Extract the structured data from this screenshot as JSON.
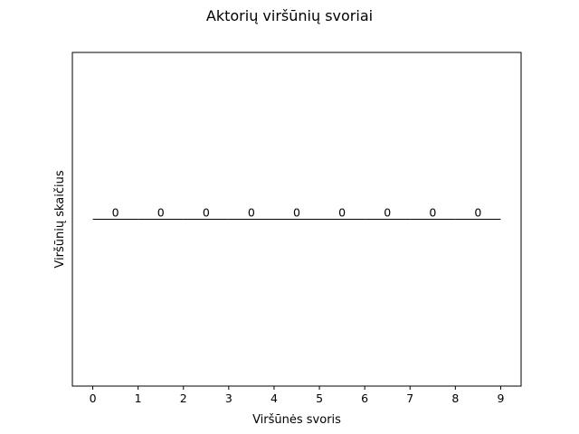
{
  "chart_data": {
    "type": "bar",
    "title": "Aktorių viršūnių svoriai",
    "xlabel": "Viršūnės svoris",
    "ylabel": "Viršūnių skaičius",
    "bin_edges": [
      0,
      1,
      2,
      3,
      4,
      5,
      6,
      7,
      8,
      9
    ],
    "bin_centers": [
      0.5,
      1.5,
      2.5,
      3.5,
      4.5,
      5.5,
      6.5,
      7.5,
      8.5
    ],
    "values": [
      0,
      0,
      0,
      0,
      0,
      0,
      0,
      0,
      0
    ],
    "data_labels": [
      "0",
      "0",
      "0",
      "0",
      "0",
      "0",
      "0",
      "0",
      "0"
    ],
    "xticks": [
      "0",
      "1",
      "2",
      "3",
      "4",
      "5",
      "6",
      "7",
      "8",
      "9"
    ],
    "xlim": [
      -0.45,
      9.45
    ],
    "ylim": [
      -0.055,
      0.055
    ],
    "yticks_visible": false,
    "grid": false,
    "legend": false,
    "colors": {
      "bar_edge": "#000000",
      "background": "#ffffff"
    }
  }
}
